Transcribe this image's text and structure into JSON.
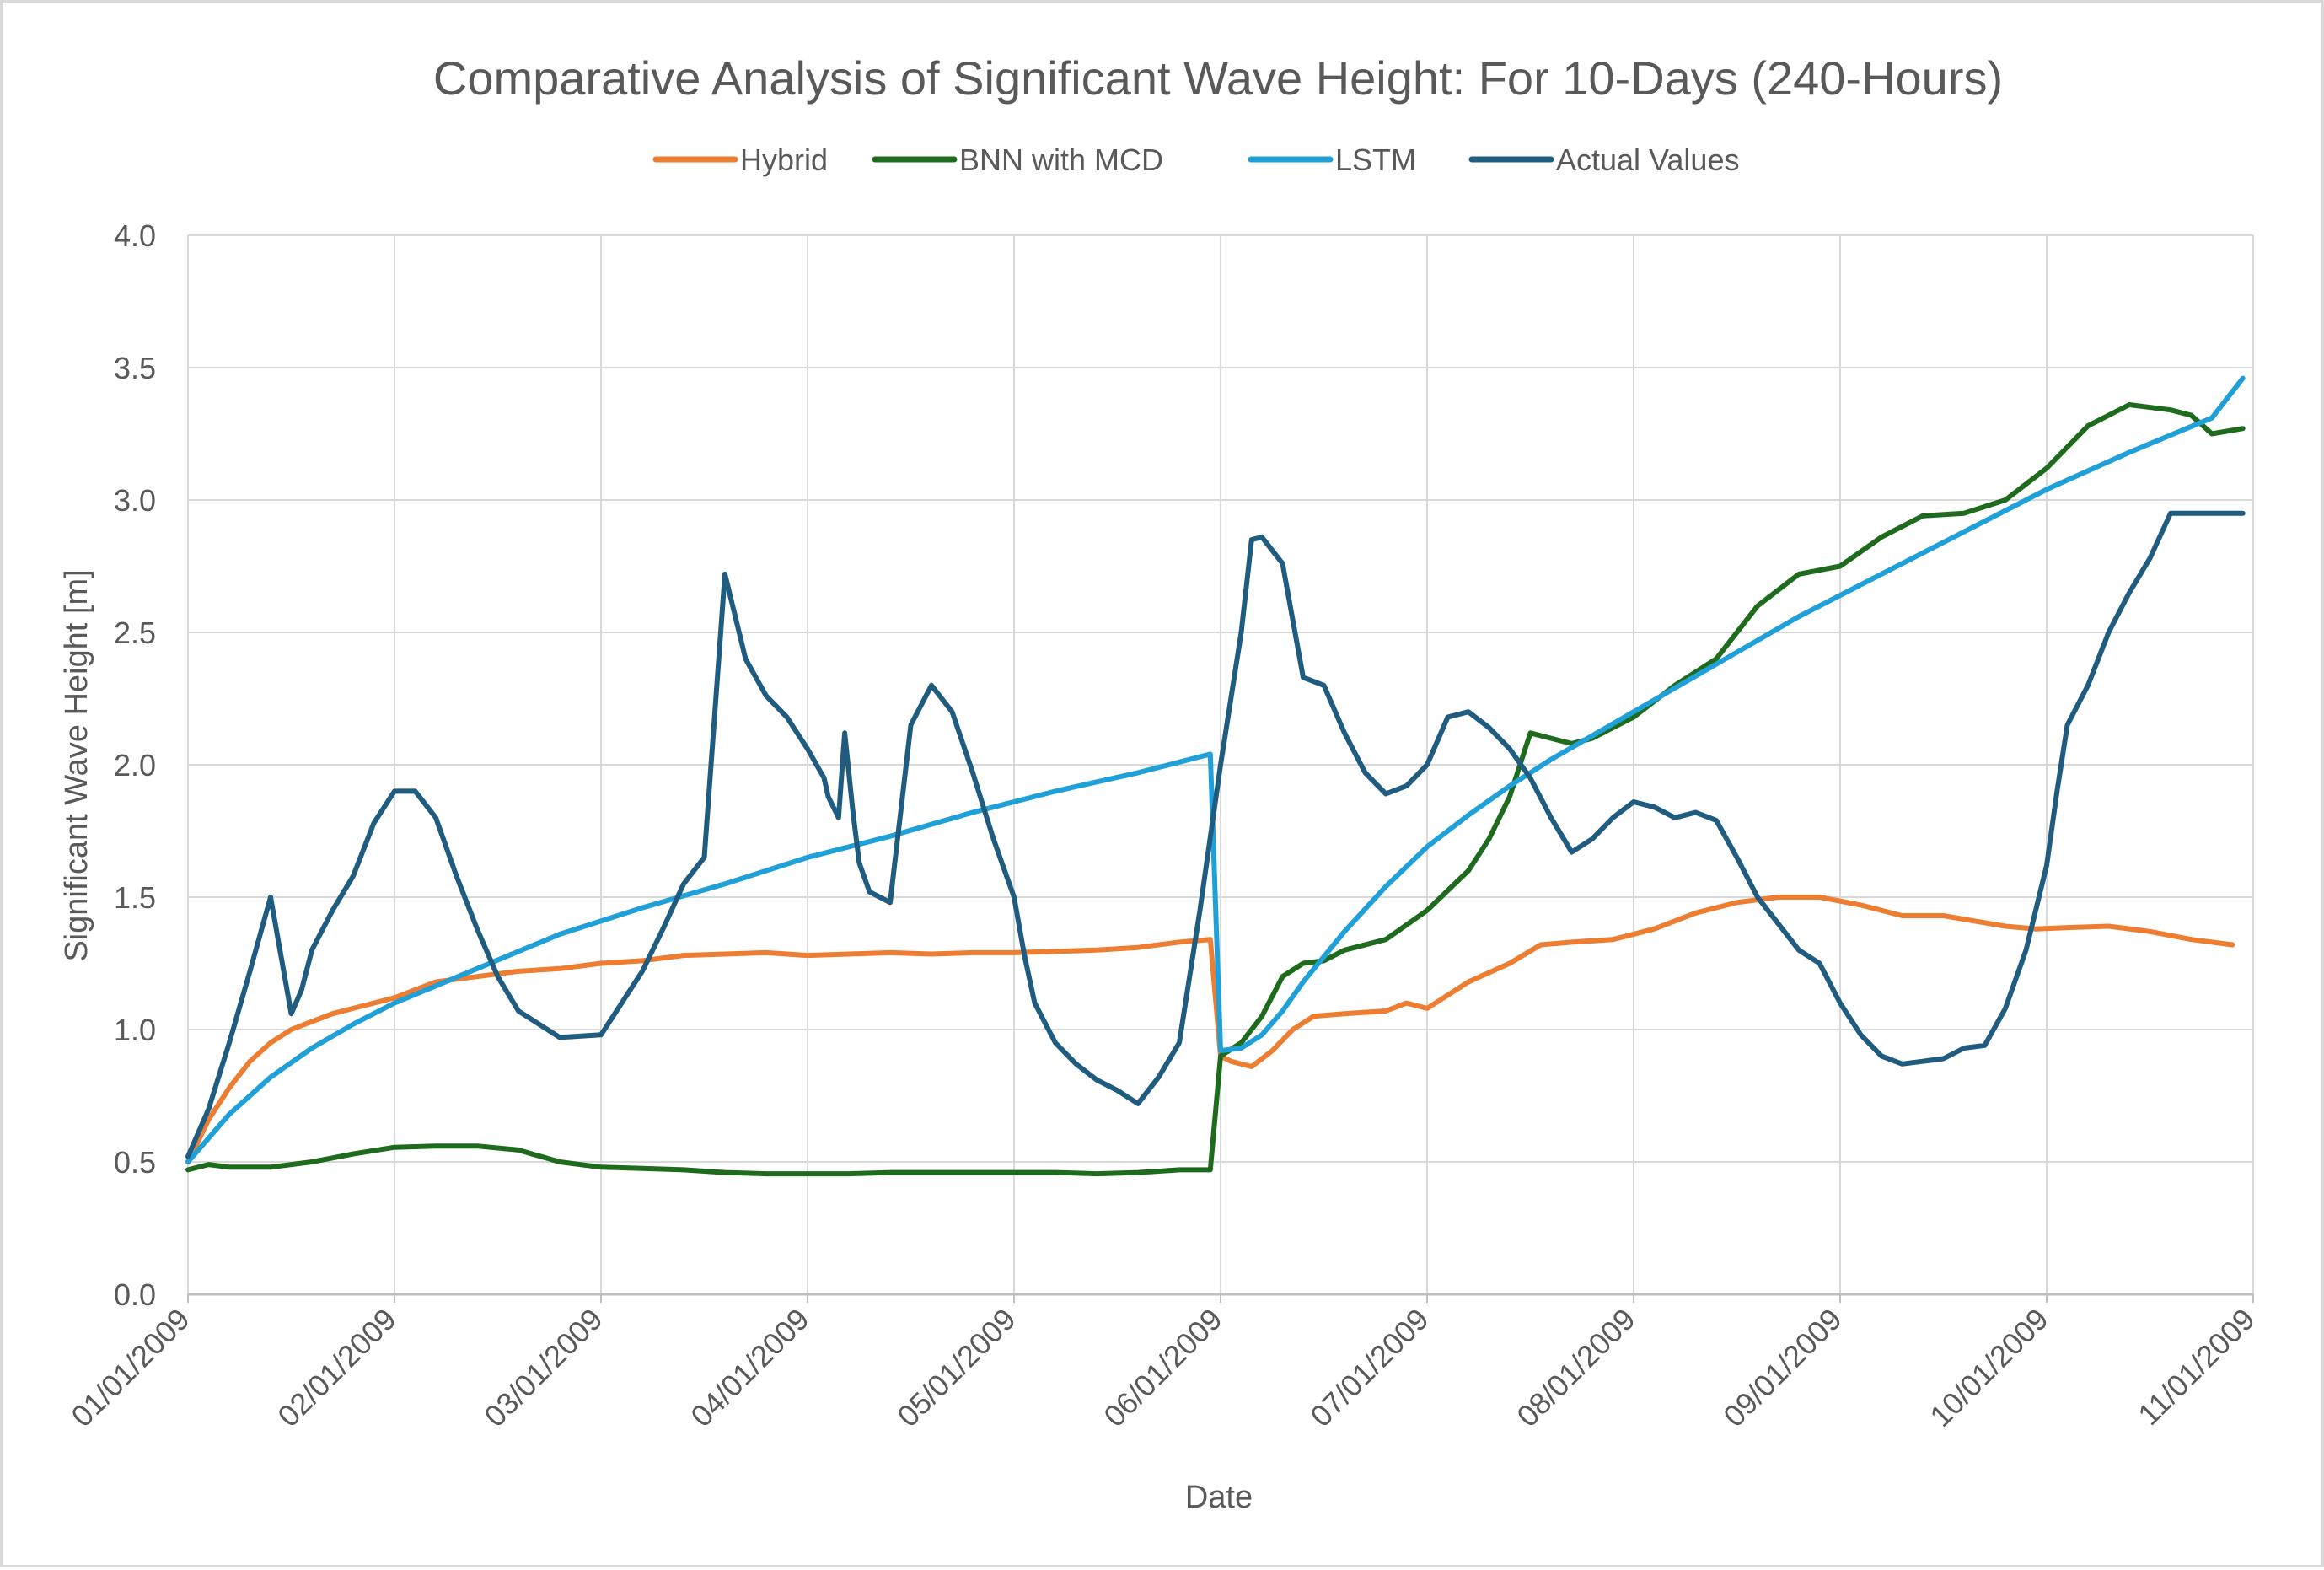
{
  "chart_data": {
    "type": "line",
    "title": "Comparative Analysis of Significant Wave Height: For 10-Days (240-Hours)",
    "xlabel": "Date",
    "ylabel": "Significant Wave Height [m]",
    "ylim": [
      0,
      4
    ],
    "y_ticks": [
      "0.0",
      "0.5",
      "1.0",
      "1.5",
      "2.0",
      "2.5",
      "3.0",
      "3.5",
      "4.0"
    ],
    "x_ticks": [
      "01/01/2009",
      "02/01/2009",
      "03/01/2009",
      "04/01/2009",
      "05/01/2009",
      "06/01/2009",
      "07/01/2009",
      "08/01/2009",
      "09/01/2009",
      "10/01/2009",
      "11/01/2009"
    ],
    "xlim": [
      0,
      10
    ],
    "grid": true,
    "legend_position": "top",
    "series": [
      {
        "name": "Hybrid",
        "color": "#ed7d31",
        "x": [
          0,
          0.1,
          0.2,
          0.3,
          0.4,
          0.5,
          0.6,
          0.7,
          0.8,
          0.9,
          1.0,
          1.2,
          1.4,
          1.6,
          1.8,
          2.0,
          2.2,
          2.4,
          2.6,
          2.8,
          3.0,
          3.2,
          3.4,
          3.6,
          3.8,
          4.0,
          4.2,
          4.4,
          4.6,
          4.8,
          4.95,
          5.0,
          5.05,
          5.15,
          5.25,
          5.35,
          5.45,
          5.6,
          5.8,
          5.9,
          6.0,
          6.2,
          6.4,
          6.55,
          6.7,
          6.9,
          7.1,
          7.3,
          7.5,
          7.7,
          7.9,
          8.1,
          8.3,
          8.5,
          8.65,
          8.8,
          8.95,
          9.1,
          9.3,
          9.5,
          9.7,
          9.9
        ],
        "values": [
          0.5,
          0.66,
          0.78,
          0.88,
          0.95,
          1.0,
          1.03,
          1.06,
          1.08,
          1.1,
          1.12,
          1.18,
          1.2,
          1.22,
          1.23,
          1.25,
          1.26,
          1.28,
          1.285,
          1.29,
          1.28,
          1.285,
          1.29,
          1.285,
          1.29,
          1.29,
          1.295,
          1.3,
          1.31,
          1.33,
          1.34,
          0.9,
          0.88,
          0.86,
          0.92,
          1.0,
          1.05,
          1.06,
          1.07,
          1.1,
          1.08,
          1.18,
          1.25,
          1.32,
          1.33,
          1.34,
          1.38,
          1.44,
          1.48,
          1.5,
          1.5,
          1.47,
          1.43,
          1.43,
          1.41,
          1.39,
          1.38,
          1.385,
          1.39,
          1.37,
          1.34,
          1.32
        ]
      },
      {
        "name": "BNN with MCD",
        "color": "#1e6b1e",
        "x": [
          0,
          0.1,
          0.2,
          0.3,
          0.4,
          0.6,
          0.8,
          1.0,
          1.2,
          1.4,
          1.6,
          1.8,
          2.0,
          2.2,
          2.4,
          2.6,
          2.8,
          3.0,
          3.2,
          3.4,
          3.6,
          3.8,
          4.0,
          4.2,
          4.4,
          4.6,
          4.8,
          4.95,
          5.0,
          5.1,
          5.2,
          5.3,
          5.4,
          5.5,
          5.6,
          5.8,
          6.0,
          6.2,
          6.3,
          6.4,
          6.5,
          6.6,
          6.7,
          6.8,
          6.9,
          7.0,
          7.2,
          7.4,
          7.6,
          7.8,
          8.0,
          8.2,
          8.4,
          8.6,
          8.8,
          9.0,
          9.2,
          9.4,
          9.6,
          9.7,
          9.8,
          9.95
        ],
        "values": [
          0.47,
          0.49,
          0.48,
          0.48,
          0.48,
          0.5,
          0.53,
          0.555,
          0.56,
          0.56,
          0.545,
          0.5,
          0.48,
          0.475,
          0.47,
          0.46,
          0.455,
          0.455,
          0.455,
          0.46,
          0.46,
          0.46,
          0.46,
          0.46,
          0.455,
          0.46,
          0.47,
          0.47,
          0.9,
          0.95,
          1.05,
          1.2,
          1.25,
          1.26,
          1.3,
          1.34,
          1.45,
          1.6,
          1.72,
          1.88,
          2.12,
          2.1,
          2.08,
          2.1,
          2.14,
          2.18,
          2.3,
          2.4,
          2.6,
          2.72,
          2.75,
          2.86,
          2.94,
          2.95,
          3.0,
          3.12,
          3.28,
          3.36,
          3.34,
          3.32,
          3.25,
          3.27
        ]
      },
      {
        "name": "LSTM",
        "color": "#1fa0d8",
        "x": [
          0,
          0.2,
          0.4,
          0.6,
          0.8,
          1.0,
          1.4,
          1.8,
          2.2,
          2.6,
          3.0,
          3.4,
          3.8,
          4.2,
          4.6,
          4.95,
          5.0,
          5.1,
          5.2,
          5.3,
          5.4,
          5.6,
          5.8,
          6.0,
          6.2,
          6.4,
          6.6,
          6.8,
          7.0,
          7.4,
          7.8,
          8.2,
          8.6,
          9.0,
          9.4,
          9.8,
          9.95
        ],
        "values": [
          0.5,
          0.68,
          0.82,
          0.93,
          1.02,
          1.1,
          1.23,
          1.36,
          1.46,
          1.55,
          1.65,
          1.73,
          1.82,
          1.9,
          1.97,
          2.04,
          0.92,
          0.93,
          0.98,
          1.07,
          1.18,
          1.37,
          1.54,
          1.69,
          1.81,
          1.92,
          2.02,
          2.11,
          2.2,
          2.38,
          2.56,
          2.72,
          2.88,
          3.04,
          3.18,
          3.31,
          3.46
        ]
      },
      {
        "name": "Actual Values",
        "color": "#1f5c80",
        "x": [
          0,
          0.1,
          0.2,
          0.3,
          0.4,
          0.5,
          0.55,
          0.6,
          0.7,
          0.8,
          0.9,
          1.0,
          1.1,
          1.2,
          1.3,
          1.4,
          1.5,
          1.6,
          1.8,
          2.0,
          2.1,
          2.2,
          2.3,
          2.4,
          2.5,
          2.6,
          2.7,
          2.8,
          2.9,
          3.0,
          3.08,
          3.1,
          3.15,
          3.18,
          3.22,
          3.25,
          3.3,
          3.4,
          3.5,
          3.6,
          3.7,
          3.8,
          3.9,
          4.0,
          4.05,
          4.1,
          4.2,
          4.3,
          4.4,
          4.5,
          4.6,
          4.7,
          4.8,
          4.9,
          5.0,
          5.1,
          5.15,
          5.2,
          5.3,
          5.4,
          5.5,
          5.6,
          5.7,
          5.8,
          5.9,
          6.0,
          6.1,
          6.2,
          6.3,
          6.4,
          6.5,
          6.6,
          6.7,
          6.8,
          6.9,
          7.0,
          7.1,
          7.2,
          7.3,
          7.4,
          7.5,
          7.6,
          7.7,
          7.8,
          7.9,
          8.0,
          8.1,
          8.2,
          8.3,
          8.4,
          8.5,
          8.6,
          8.7,
          8.8,
          8.9,
          9.0,
          9.05,
          9.1,
          9.2,
          9.3,
          9.4,
          9.5,
          9.6,
          9.7,
          9.8,
          9.95
        ],
        "values": [
          0.52,
          0.7,
          0.95,
          1.22,
          1.5,
          1.06,
          1.15,
          1.3,
          1.45,
          1.58,
          1.78,
          1.9,
          1.9,
          1.8,
          1.58,
          1.38,
          1.2,
          1.07,
          0.97,
          0.98,
          1.1,
          1.22,
          1.38,
          1.55,
          1.65,
          2.72,
          2.4,
          2.26,
          2.18,
          2.06,
          1.95,
          1.88,
          1.8,
          2.12,
          1.82,
          1.63,
          1.52,
          1.48,
          2.15,
          2.3,
          2.2,
          1.97,
          1.72,
          1.5,
          1.28,
          1.1,
          0.95,
          0.87,
          0.81,
          0.77,
          0.72,
          0.82,
          0.95,
          1.45,
          2.0,
          2.5,
          2.85,
          2.86,
          2.76,
          2.33,
          2.3,
          2.12,
          1.97,
          1.89,
          1.92,
          2.0,
          2.18,
          2.2,
          2.14,
          2.06,
          1.95,
          1.8,
          1.67,
          1.72,
          1.8,
          1.86,
          1.84,
          1.8,
          1.82,
          1.79,
          1.65,
          1.5,
          1.4,
          1.3,
          1.25,
          1.1,
          0.98,
          0.9,
          0.87,
          0.88,
          0.89,
          0.93,
          0.94,
          1.08,
          1.3,
          1.62,
          1.9,
          2.15,
          2.3,
          2.5,
          2.65,
          2.78,
          2.95,
          2.95,
          2.95,
          2.95
        ]
      }
    ]
  }
}
